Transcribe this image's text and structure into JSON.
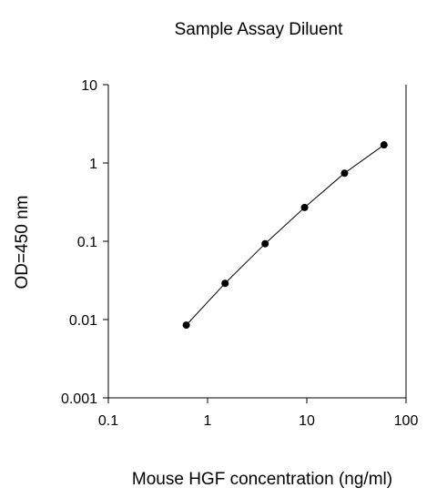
{
  "chart_data": {
    "type": "scatter",
    "title": "Sample Assay Diluent",
    "xlabel": "Mouse HGF concentration (ng/ml)",
    "ylabel": "OD=450 nm",
    "xscale": "log",
    "yscale": "log",
    "xlim": [
      0.1,
      100
    ],
    "ylim": [
      0.001,
      10
    ],
    "xticks": [
      "0.1",
      "1",
      "10",
      "100"
    ],
    "yticks": [
      "0.001",
      "0.01",
      "0.1",
      "1",
      "10"
    ],
    "grid": false,
    "series": [
      {
        "x": [
          0.61,
          1.5,
          3.8,
          9.5,
          24,
          60
        ],
        "y": [
          0.0085,
          0.029,
          0.093,
          0.27,
          0.74,
          1.7
        ],
        "marker": "circle",
        "line": true,
        "color": "#000000"
      }
    ]
  }
}
